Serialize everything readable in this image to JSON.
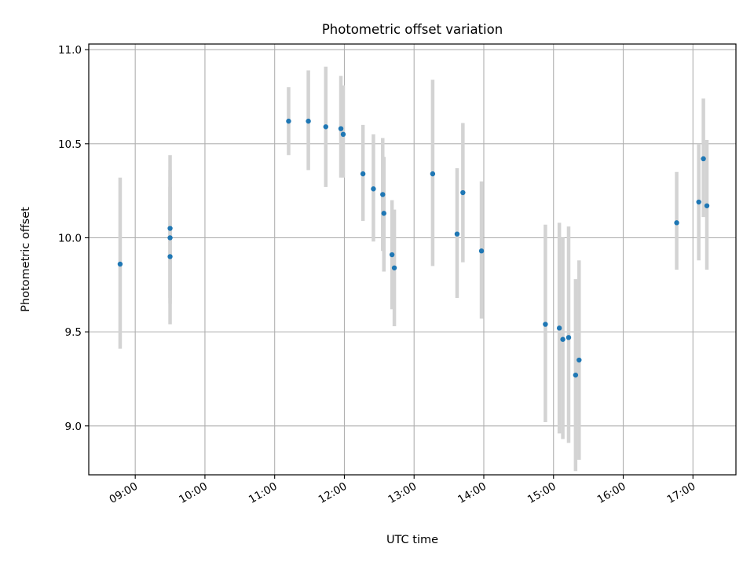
{
  "chart_data": {
    "type": "scatter",
    "title": "Photometric offset variation",
    "xlabel": "UTC time",
    "ylabel": "Photometric offset",
    "grid": true,
    "xlim": [
      "08:20",
      "17:37"
    ],
    "ylim": [
      8.74,
      11.03
    ],
    "x_ticks": [
      "09:00",
      "10:00",
      "11:00",
      "12:00",
      "13:00",
      "14:00",
      "15:00",
      "16:00",
      "17:00"
    ],
    "y_ticks": [
      "9.0",
      "9.5",
      "10.0",
      "10.5",
      "11.0"
    ],
    "colors": {
      "marker": "#1f77b4",
      "errorbar": "#d3d3d3",
      "grid": "#b0b0b0"
    },
    "series": [
      {
        "points": [
          {
            "x": "08:47",
            "y": 9.86,
            "ylo": 9.41,
            "yhi": 10.32
          },
          {
            "x": "09:30",
            "y": 10.05,
            "ylo": 9.65,
            "yhi": 10.36
          },
          {
            "x": "09:30",
            "y": 10.0,
            "ylo": 9.68,
            "yhi": 10.27
          },
          {
            "x": "09:30",
            "y": 9.9,
            "ylo": 9.54,
            "yhi": 10.44
          },
          {
            "x": "11:12",
            "y": 10.62,
            "ylo": 10.44,
            "yhi": 10.8
          },
          {
            "x": "11:29",
            "y": 10.62,
            "ylo": 10.36,
            "yhi": 10.89
          },
          {
            "x": "11:44",
            "y": 10.59,
            "ylo": 10.27,
            "yhi": 10.91
          },
          {
            "x": "11:57",
            "y": 10.58,
            "ylo": 10.32,
            "yhi": 10.86
          },
          {
            "x": "11:59",
            "y": 10.55,
            "ylo": 10.32,
            "yhi": 10.81
          },
          {
            "x": "12:16",
            "y": 10.34,
            "ylo": 10.09,
            "yhi": 10.6
          },
          {
            "x": "12:25",
            "y": 10.26,
            "ylo": 9.98,
            "yhi": 10.55
          },
          {
            "x": "12:33",
            "y": 10.23,
            "ylo": 9.93,
            "yhi": 10.53
          },
          {
            "x": "12:34",
            "y": 10.13,
            "ylo": 9.82,
            "yhi": 10.43
          },
          {
            "x": "12:41",
            "y": 9.91,
            "ylo": 9.62,
            "yhi": 10.2
          },
          {
            "x": "12:43",
            "y": 9.84,
            "ylo": 9.53,
            "yhi": 10.15
          },
          {
            "x": "13:16",
            "y": 10.34,
            "ylo": 9.85,
            "yhi": 10.84
          },
          {
            "x": "13:37",
            "y": 10.02,
            "ylo": 9.68,
            "yhi": 10.37
          },
          {
            "x": "13:42",
            "y": 10.24,
            "ylo": 9.87,
            "yhi": 10.61
          },
          {
            "x": "13:58",
            "y": 9.93,
            "ylo": 9.57,
            "yhi": 10.3
          },
          {
            "x": "14:53",
            "y": 9.54,
            "ylo": 9.02,
            "yhi": 10.07
          },
          {
            "x": "15:05",
            "y": 9.52,
            "ylo": 8.96,
            "yhi": 10.08
          },
          {
            "x": "15:08",
            "y": 9.46,
            "ylo": 8.93,
            "yhi": 10.0
          },
          {
            "x": "15:13",
            "y": 9.47,
            "ylo": 8.91,
            "yhi": 10.06
          },
          {
            "x": "15:19",
            "y": 9.27,
            "ylo": 8.76,
            "yhi": 9.78
          },
          {
            "x": "15:22",
            "y": 9.35,
            "ylo": 8.82,
            "yhi": 9.88
          },
          {
            "x": "16:46",
            "y": 10.08,
            "ylo": 9.83,
            "yhi": 10.35
          },
          {
            "x": "17:05",
            "y": 10.19,
            "ylo": 9.88,
            "yhi": 10.5
          },
          {
            "x": "17:09",
            "y": 10.42,
            "ylo": 10.11,
            "yhi": 10.74
          },
          {
            "x": "17:12",
            "y": 10.17,
            "ylo": 9.83,
            "yhi": 10.52
          }
        ]
      }
    ]
  }
}
